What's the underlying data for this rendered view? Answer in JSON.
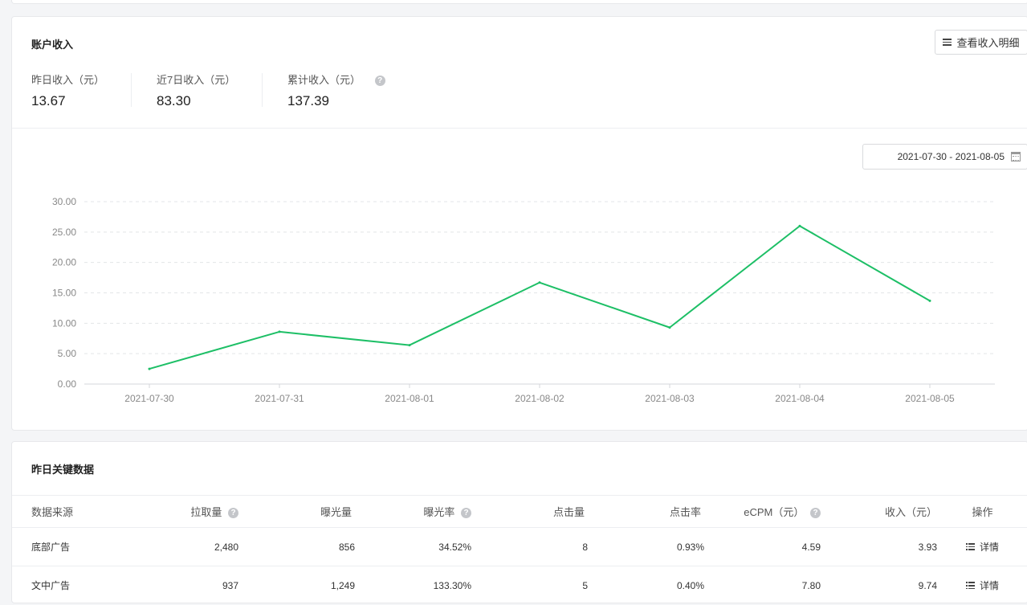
{
  "income": {
    "title": "账户收入",
    "detail_button": "查看收入明细",
    "stats": [
      {
        "label": "昨日收入（元）",
        "value": "13.67"
      },
      {
        "label": "近7日收入（元）",
        "value": "83.30"
      },
      {
        "label": "累计收入（元）",
        "value": "137.39"
      }
    ],
    "date_range": "2021-07-30 - 2021-08-05"
  },
  "chart_data": {
    "type": "line",
    "x": [
      "2021-07-30",
      "2021-07-31",
      "2021-08-01",
      "2021-08-02",
      "2021-08-03",
      "2021-08-04",
      "2021-08-05"
    ],
    "series": [
      {
        "values": [
          2.5,
          8.6,
          6.4,
          16.7,
          9.3,
          26.0,
          13.7
        ],
        "color": "#1dbf66"
      }
    ],
    "y_ticks": [
      "0.00",
      "5.00",
      "10.00",
      "15.00",
      "20.00",
      "25.00",
      "30.00"
    ],
    "ylim": [
      0,
      30
    ],
    "grid": "dashed horizontal",
    "legend": "none"
  },
  "key_data": {
    "title": "昨日关键数据",
    "columns": [
      "数据来源",
      "拉取量",
      "曝光量",
      "曝光率",
      "点击量",
      "点击率",
      "eCPM（元）",
      "收入（元）",
      "操作"
    ],
    "help_columns": [
      1,
      3,
      6
    ],
    "rows": [
      {
        "source": "底部广告",
        "pulls": "2,480",
        "impressions": "856",
        "impression_rate": "34.52%",
        "clicks": "8",
        "ctr": "0.93%",
        "ecpm": "4.59",
        "revenue": "3.93",
        "action": "详情"
      },
      {
        "source": "文中广告",
        "pulls": "937",
        "impressions": "1,249",
        "impression_rate": "133.30%",
        "clicks": "5",
        "ctr": "0.40%",
        "ecpm": "7.80",
        "revenue": "9.74",
        "action": "详情"
      }
    ]
  },
  "icons": {
    "help": "question-circle-icon",
    "menu": "menu-icon",
    "calendar": "calendar-icon",
    "list": "list-icon"
  },
  "colors": {
    "line": "#1dbf66",
    "grid": "#e3e5e8"
  }
}
